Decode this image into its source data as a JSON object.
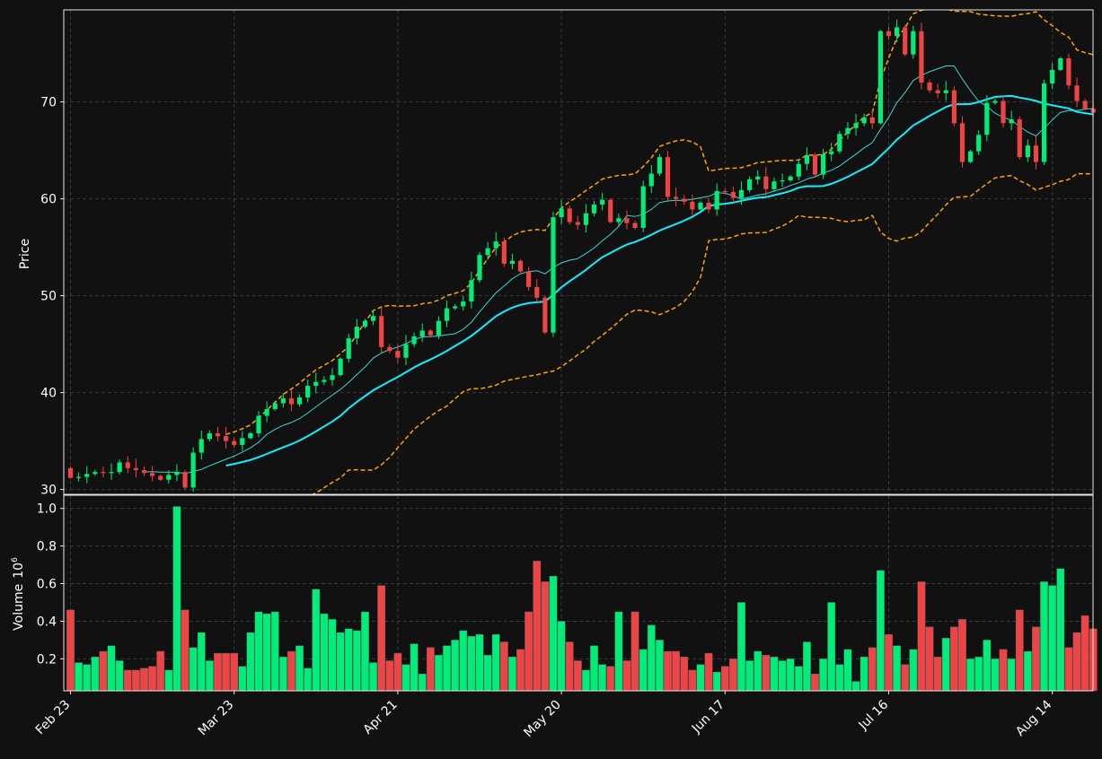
{
  "chart_data": {
    "type": "candlestick",
    "price_axis": {
      "label": "Price",
      "ylim": [
        29.5,
        79.5
      ],
      "ticks": [
        30,
        40,
        50,
        60,
        70
      ],
      "tick_labels": [
        "30",
        "40",
        "50",
        "60",
        "70"
      ]
    },
    "volume_axis": {
      "label": "Volume",
      "unit": "10^6",
      "unit_base": "10",
      "unit_exp": "6",
      "ylim": [
        0.03,
        1.07
      ],
      "ticks": [
        0.2,
        0.4,
        0.6,
        0.8,
        1.0
      ],
      "tick_labels": [
        "0.2",
        "0.4",
        "0.6",
        "0.8",
        "1.0"
      ]
    },
    "x_axis": {
      "start_date": "Feb 23",
      "count": 126,
      "ticks": [
        {
          "index": 0,
          "label": "Feb 23"
        },
        {
          "index": 20,
          "label": "Mar 23"
        },
        {
          "index": 40,
          "label": "Apr 21"
        },
        {
          "index": 60,
          "label": "May 20"
        },
        {
          "index": 80,
          "label": "Jun 17"
        },
        {
          "index": 100,
          "label": "Jul 16"
        },
        {
          "index": 120,
          "label": "Aug 14"
        }
      ]
    },
    "grid": true,
    "colors": {
      "background": "#111111",
      "up": "#00ee77",
      "down": "#ee4444",
      "ma_short": "#3ed6cf",
      "ma_long": "#11eeff",
      "bollinger": "#ffa500",
      "grid": "#3a3a3a",
      "axes": "#e6e6e6"
    },
    "close": [
      31.2,
      31.3,
      31.6,
      31.8,
      31.7,
      31.8,
      32.8,
      32.2,
      32.0,
      31.7,
      31.4,
      31.0,
      31.5,
      31.8,
      30.2,
      33.8,
      35.2,
      35.8,
      35.5,
      35.0,
      34.6,
      35.3,
      35.8,
      37.6,
      38.3,
      38.9,
      39.4,
      38.8,
      39.5,
      40.7,
      41.1,
      41.3,
      41.8,
      43.5,
      45.6,
      46.8,
      47.4,
      47.9,
      44.7,
      44.3,
      43.6,
      45.0,
      45.8,
      46.4,
      45.9,
      47.4,
      48.7,
      48.9,
      49.4,
      51.6,
      54.2,
      54.9,
      55.6,
      53.3,
      53.6,
      52.5,
      50.9,
      49.8,
      46.2,
      58.1,
      59.0,
      57.6,
      57.3,
      58.5,
      59.4,
      59.9,
      57.6,
      58.0,
      57.5,
      57.0,
      61.3,
      62.6,
      64.3,
      60.2,
      60.0,
      59.7,
      58.9,
      59.6,
      58.9,
      60.8,
      60.7,
      60.1,
      60.9,
      62.0,
      62.3,
      61.0,
      61.8,
      61.9,
      62.3,
      63.6,
      64.5,
      62.5,
      64.6,
      64.9,
      66.7,
      67.3,
      67.8,
      68.4,
      67.8,
      77.3,
      76.8,
      77.7,
      74.9,
      77.3,
      72.0,
      71.2,
      70.9,
      71.2,
      67.8,
      63.8,
      64.9,
      66.6,
      69.9,
      70.1,
      67.8,
      68.2,
      64.3,
      65.5,
      63.8,
      71.9,
      73.3,
      74.5,
      71.7,
      70.1,
      69.3,
      68.9
    ],
    "volume": [
      0.46,
      0.18,
      0.17,
      0.21,
      0.24,
      0.27,
      0.19,
      0.14,
      0.14,
      0.15,
      0.16,
      0.24,
      0.14,
      1.01,
      0.46,
      0.26,
      0.34,
      0.19,
      0.23,
      0.23,
      0.23,
      0.16,
      0.34,
      0.45,
      0.44,
      0.45,
      0.21,
      0.24,
      0.27,
      0.15,
      0.57,
      0.44,
      0.41,
      0.34,
      0.36,
      0.35,
      0.45,
      0.18,
      0.59,
      0.19,
      0.23,
      0.17,
      0.28,
      0.12,
      0.26,
      0.22,
      0.27,
      0.3,
      0.35,
      0.32,
      0.33,
      0.22,
      0.33,
      0.29,
      0.21,
      0.25,
      0.45,
      0.72,
      0.61,
      0.64,
      0.4,
      0.29,
      0.19,
      0.14,
      0.27,
      0.17,
      0.16,
      0.45,
      0.19,
      0.45,
      0.25,
      0.38,
      0.3,
      0.24,
      0.24,
      0.21,
      0.14,
      0.17,
      0.23,
      0.13,
      0.16,
      0.2,
      0.5,
      0.19,
      0.24,
      0.22,
      0.21,
      0.19,
      0.2,
      0.16,
      0.29,
      0.12,
      0.2,
      0.5,
      0.17,
      0.25,
      0.08,
      0.21,
      0.26,
      0.67,
      0.33,
      0.27,
      0.17,
      0.25,
      0.61,
      0.37,
      0.21,
      0.31,
      0.37,
      0.41,
      0.2,
      0.21,
      0.3,
      0.2,
      0.25,
      0.2,
      0.46,
      0.24,
      0.37,
      0.61,
      0.59,
      0.68,
      0.26,
      0.34,
      0.43,
      0.36
    ],
    "overlays": {
      "ma_short_window": 10,
      "ma_long_window": 20,
      "bollinger_window": 20,
      "bollinger_k": 2
    }
  }
}
